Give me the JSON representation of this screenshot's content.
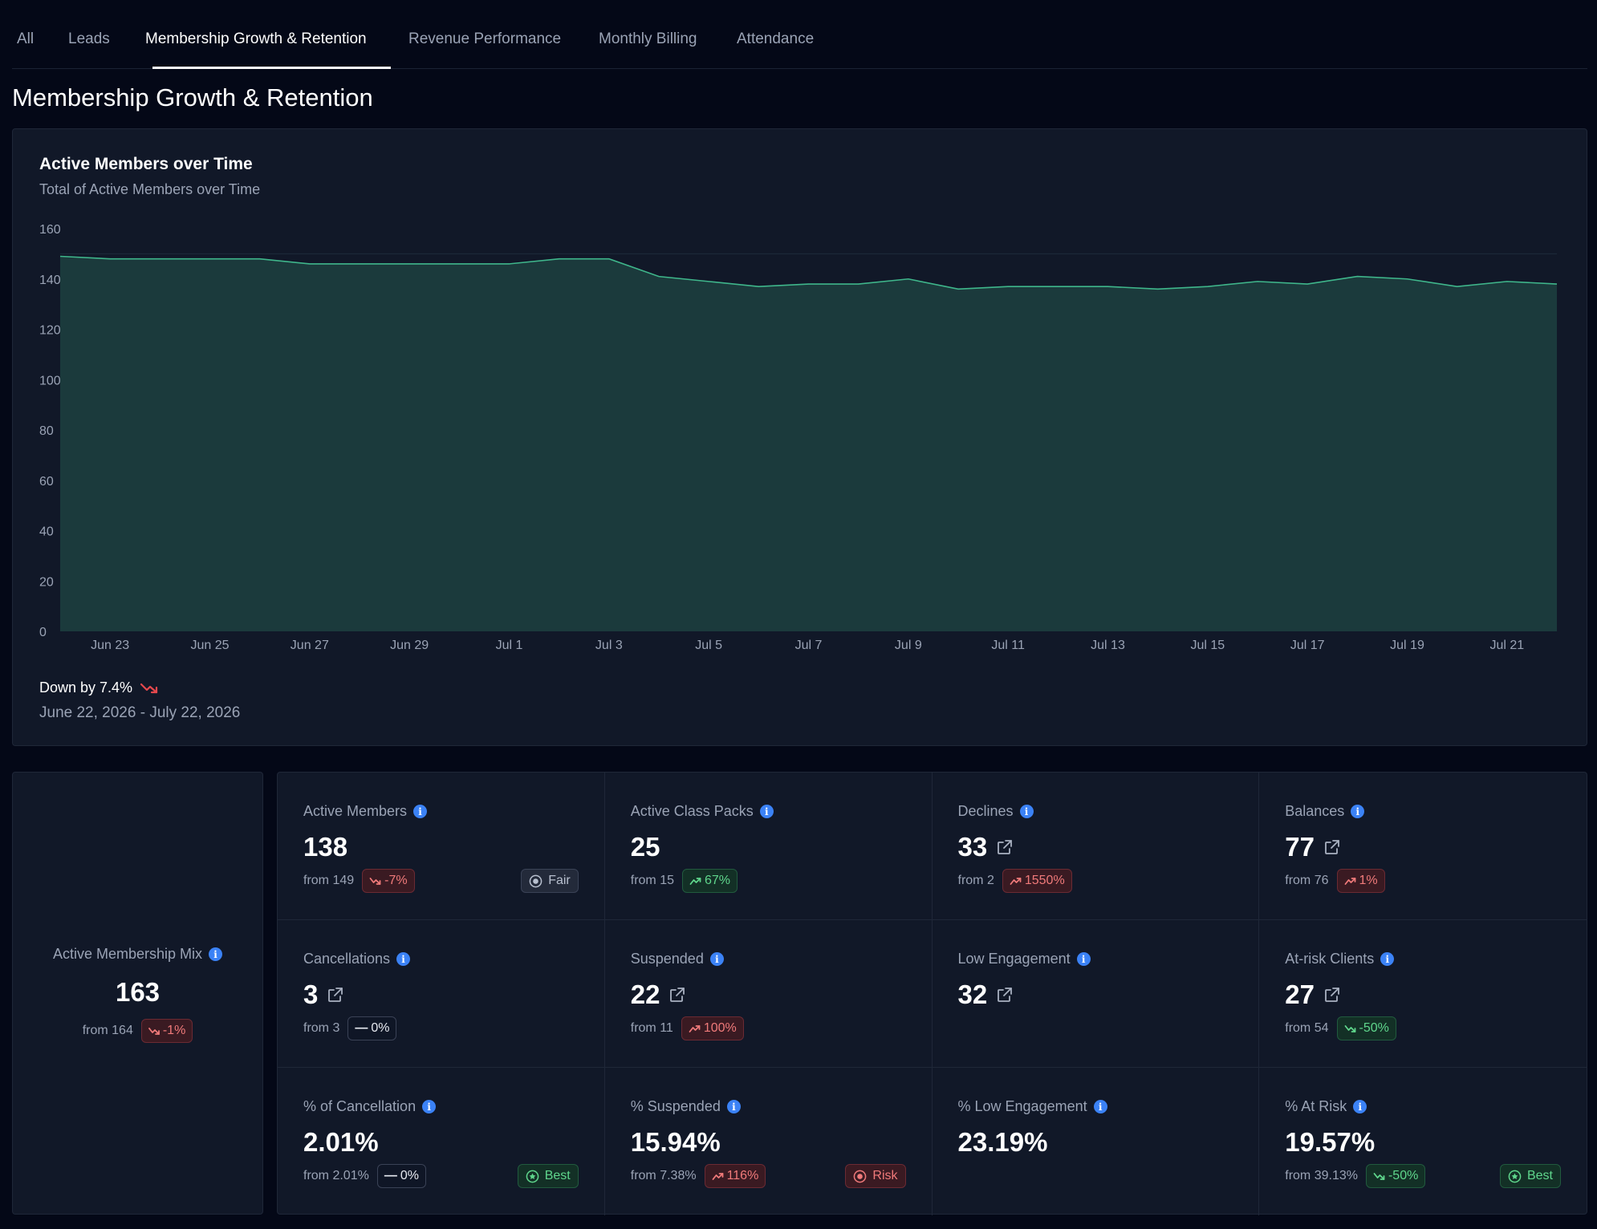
{
  "tabs": [
    {
      "label": "All"
    },
    {
      "label": "Leads"
    },
    {
      "label": "Membership Growth & Retention"
    },
    {
      "label": "Revenue Performance"
    },
    {
      "label": "Monthly Billing"
    },
    {
      "label": "Attendance"
    }
  ],
  "page_title": "Membership Growth & Retention",
  "chart_card": {
    "title": "Active Members over Time",
    "subtitle": "Total of Active Members over Time",
    "trend_text": "Down by 7.4%",
    "date_range": "June 22, 2026 - July 22, 2026"
  },
  "colors": {
    "area_fill": "#1b3a3c",
    "line": "#3fb68b",
    "trend_down": "#e5484d",
    "info": "#3b82f6"
  },
  "chart_data": {
    "type": "area",
    "title": "Active Members over Time",
    "subtitle": "Total of Active Members over Time",
    "x": [
      "Jun 22",
      "Jun 23",
      "Jun 24",
      "Jun 25",
      "Jun 26",
      "Jun 27",
      "Jun 28",
      "Jun 29",
      "Jun 30",
      "Jul 1",
      "Jul 2",
      "Jul 3",
      "Jul 4",
      "Jul 5",
      "Jul 6",
      "Jul 7",
      "Jul 8",
      "Jul 9",
      "Jul 10",
      "Jul 11",
      "Jul 12",
      "Jul 13",
      "Jul 14",
      "Jul 15",
      "Jul 16",
      "Jul 17",
      "Jul 18",
      "Jul 19",
      "Jul 20",
      "Jul 21",
      "Jul 22"
    ],
    "x_tick_labels": [
      "Jun 23",
      "Jun 25",
      "Jun 27",
      "Jun 29",
      "Jul 1",
      "Jul 3",
      "Jul 5",
      "Jul 7",
      "Jul 9",
      "Jul 11",
      "Jul 13",
      "Jul 15",
      "Jul 17",
      "Jul 19",
      "Jul 21"
    ],
    "series": [
      {
        "values": [
          149,
          148,
          148,
          148,
          148,
          146,
          146,
          146,
          146,
          146,
          148,
          148,
          141,
          139,
          137,
          138,
          138,
          140,
          136,
          137,
          137,
          137,
          136,
          137,
          139,
          138,
          141,
          140,
          137,
          139,
          138
        ]
      }
    ],
    "y_ticks": [
      0,
      20,
      40,
      60,
      80,
      100,
      120,
      140,
      160
    ],
    "ylim": [
      0,
      160
    ],
    "grid": true
  },
  "membership_mix": {
    "label": "Active Membership Mix",
    "value": "163",
    "from": "from 164",
    "change": "-1%",
    "change_dir": "down"
  },
  "stats": [
    {
      "label": "Active Members",
      "info": true,
      "value": "138",
      "ext": false,
      "from": "from 149",
      "change": "-7%",
      "change_style": "red",
      "change_dir": "down",
      "status": "Fair",
      "status_style": "fair"
    },
    {
      "label": "Active Class Packs",
      "info": true,
      "value": "25",
      "ext": false,
      "from": "from 15",
      "change": "67%",
      "change_style": "green",
      "change_dir": "up",
      "status": "",
      "status_style": ""
    },
    {
      "label": "Declines",
      "info": true,
      "value": "33",
      "ext": true,
      "from": "from 2",
      "change": "1550%",
      "change_style": "red",
      "change_dir": "up",
      "status": "",
      "status_style": ""
    },
    {
      "label": "Balances",
      "info": true,
      "value": "77",
      "ext": true,
      "from": "from 76",
      "change": "1%",
      "change_style": "red",
      "change_dir": "up",
      "status": "",
      "status_style": ""
    },
    {
      "label": "Cancellations",
      "info": true,
      "value": "3",
      "ext": true,
      "from": "from 3",
      "change": "0%",
      "change_style": "neutral",
      "change_dir": "flat",
      "status": "",
      "status_style": ""
    },
    {
      "label": "Suspended",
      "info": true,
      "value": "22",
      "ext": true,
      "from": "from 11",
      "change": "100%",
      "change_style": "red",
      "change_dir": "up",
      "status": "",
      "status_style": ""
    },
    {
      "label": "Low Engagement",
      "info": true,
      "value": "32",
      "ext": true,
      "from": "",
      "change": "",
      "change_style": "",
      "change_dir": "",
      "status": "",
      "status_style": ""
    },
    {
      "label": "At-risk Clients",
      "info": true,
      "value": "27",
      "ext": true,
      "from": "from 54",
      "change": "-50%",
      "change_style": "green",
      "change_dir": "down",
      "status": "",
      "status_style": ""
    },
    {
      "label": "% of Cancellation",
      "info": true,
      "value": "2.01%",
      "ext": false,
      "from": "from 2.01%",
      "change": "0%",
      "change_style": "neutral",
      "change_dir": "flat",
      "status": "Best",
      "status_style": "best"
    },
    {
      "label": "% Suspended",
      "info": true,
      "value": "15.94%",
      "ext": false,
      "from": "from 7.38%",
      "change": "116%",
      "change_style": "red",
      "change_dir": "up",
      "status": "Risk",
      "status_style": "risk"
    },
    {
      "label": "% Low Engagement",
      "info": true,
      "value": "23.19%",
      "ext": false,
      "from": "",
      "change": "",
      "change_style": "",
      "change_dir": "",
      "status": "",
      "status_style": ""
    },
    {
      "label": "% At Risk",
      "info": true,
      "value": "19.57%",
      "ext": false,
      "from": "from 39.13%",
      "change": "-50%",
      "change_style": "green",
      "change_dir": "down",
      "status": "Best",
      "status_style": "best"
    }
  ]
}
